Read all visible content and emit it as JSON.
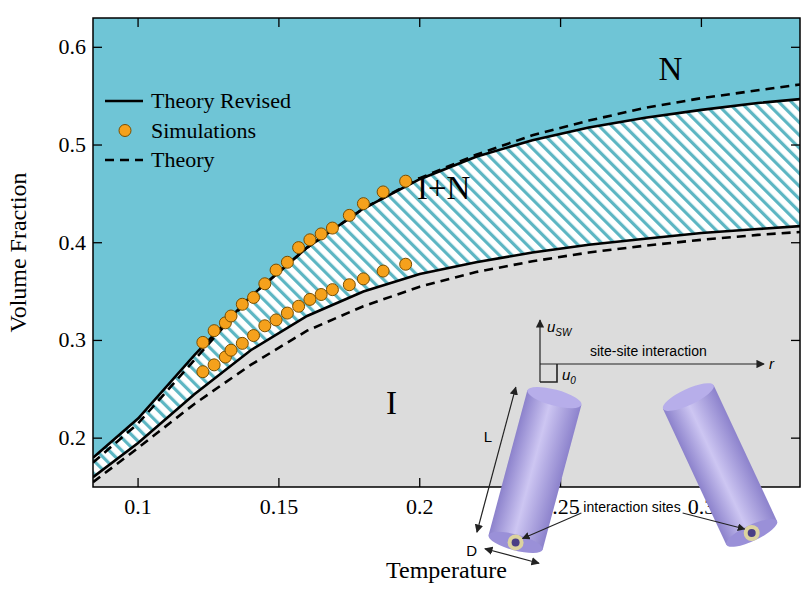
{
  "chart_data": {
    "type": "line",
    "x_label": "Temperature",
    "y_label": "Volume Fraction",
    "xlim": [
      0.084,
      0.335
    ],
    "ylim": [
      0.15,
      0.63
    ],
    "xticks": [
      0.1,
      0.15,
      0.2,
      0.25,
      0.3
    ],
    "yticks": [
      0.2,
      0.3,
      0.4,
      0.5,
      0.6
    ],
    "legend": "upper left",
    "series": [
      {
        "name": "Theory Revised",
        "type": "line",
        "line_style": "solid",
        "color": "#000000",
        "x": [
          0.084,
          0.1,
          0.12,
          0.14,
          0.16,
          0.18,
          0.2,
          0.22,
          0.24,
          0.26,
          0.28,
          0.3,
          0.32,
          0.335,
          null,
          0.084,
          0.1,
          0.12,
          0.14,
          0.16,
          0.18,
          0.2,
          0.22,
          0.24,
          0.26,
          0.28,
          0.3,
          0.32,
          0.335
        ],
        "values": [
          0.18,
          0.22,
          0.285,
          0.345,
          0.395,
          0.435,
          0.465,
          0.488,
          0.505,
          0.518,
          0.528,
          0.536,
          0.543,
          0.547,
          null,
          0.16,
          0.195,
          0.245,
          0.29,
          0.325,
          0.35,
          0.368,
          0.38,
          0.39,
          0.398,
          0.404,
          0.41,
          0.414,
          0.417
        ]
      },
      {
        "name": "Simulations",
        "type": "scatter",
        "marker": "circle",
        "color": "#f5a11c",
        "x": [
          0.123,
          0.127,
          0.131,
          0.133,
          0.137,
          0.141,
          0.145,
          0.149,
          0.153,
          0.157,
          0.161,
          0.165,
          0.169,
          0.175,
          0.18,
          0.187,
          0.195,
          0.123,
          0.127,
          0.131,
          0.133,
          0.137,
          0.141,
          0.145,
          0.149,
          0.153,
          0.157,
          0.161,
          0.165,
          0.169,
          0.175,
          0.18,
          0.187,
          0.195
        ],
        "values": [
          0.298,
          0.31,
          0.318,
          0.325,
          0.337,
          0.344,
          0.358,
          0.372,
          0.38,
          0.395,
          0.403,
          0.409,
          0.415,
          0.428,
          0.44,
          0.452,
          0.463,
          0.268,
          0.275,
          0.283,
          0.29,
          0.297,
          0.305,
          0.315,
          0.321,
          0.328,
          0.335,
          0.342,
          0.347,
          0.352,
          0.357,
          0.363,
          0.371,
          0.378
        ]
      },
      {
        "name": "Theory",
        "type": "line",
        "line_style": "dashed",
        "color": "#000000",
        "x": [
          0.084,
          0.1,
          0.12,
          0.14,
          0.16,
          0.18,
          0.2,
          0.22,
          0.24,
          0.26,
          0.28,
          0.3,
          0.32,
          0.335,
          null,
          0.084,
          0.1,
          0.12,
          0.14,
          0.16,
          0.18,
          0.2,
          0.22,
          0.24,
          0.26,
          0.28,
          0.3,
          0.32,
          0.335
        ],
        "values": [
          0.175,
          0.215,
          0.28,
          0.345,
          0.395,
          0.435,
          0.466,
          0.49,
          0.51,
          0.525,
          0.538,
          0.548,
          0.556,
          0.562,
          null,
          0.155,
          0.19,
          0.235,
          0.275,
          0.31,
          0.335,
          0.355,
          0.37,
          0.381,
          0.39,
          0.397,
          0.403,
          0.408,
          0.411
        ]
      }
    ],
    "annotations": [
      {
        "text": "N",
        "x": 0.289,
        "y": 0.578
      },
      {
        "text": "I+N",
        "x": 0.2085,
        "y": 0.456
      },
      {
        "text": "I",
        "x": 0.19,
        "y": 0.236
      }
    ],
    "inset": {
      "title": "site-site interaction",
      "sites_label": "interaction sites",
      "length_label": "L",
      "diameter_label": "D",
      "distance_label": "r",
      "height_label": {
        "symbol": "u",
        "sub": "SW"
      },
      "depth_label": {
        "symbol": "u",
        "sub": "0"
      }
    }
  }
}
